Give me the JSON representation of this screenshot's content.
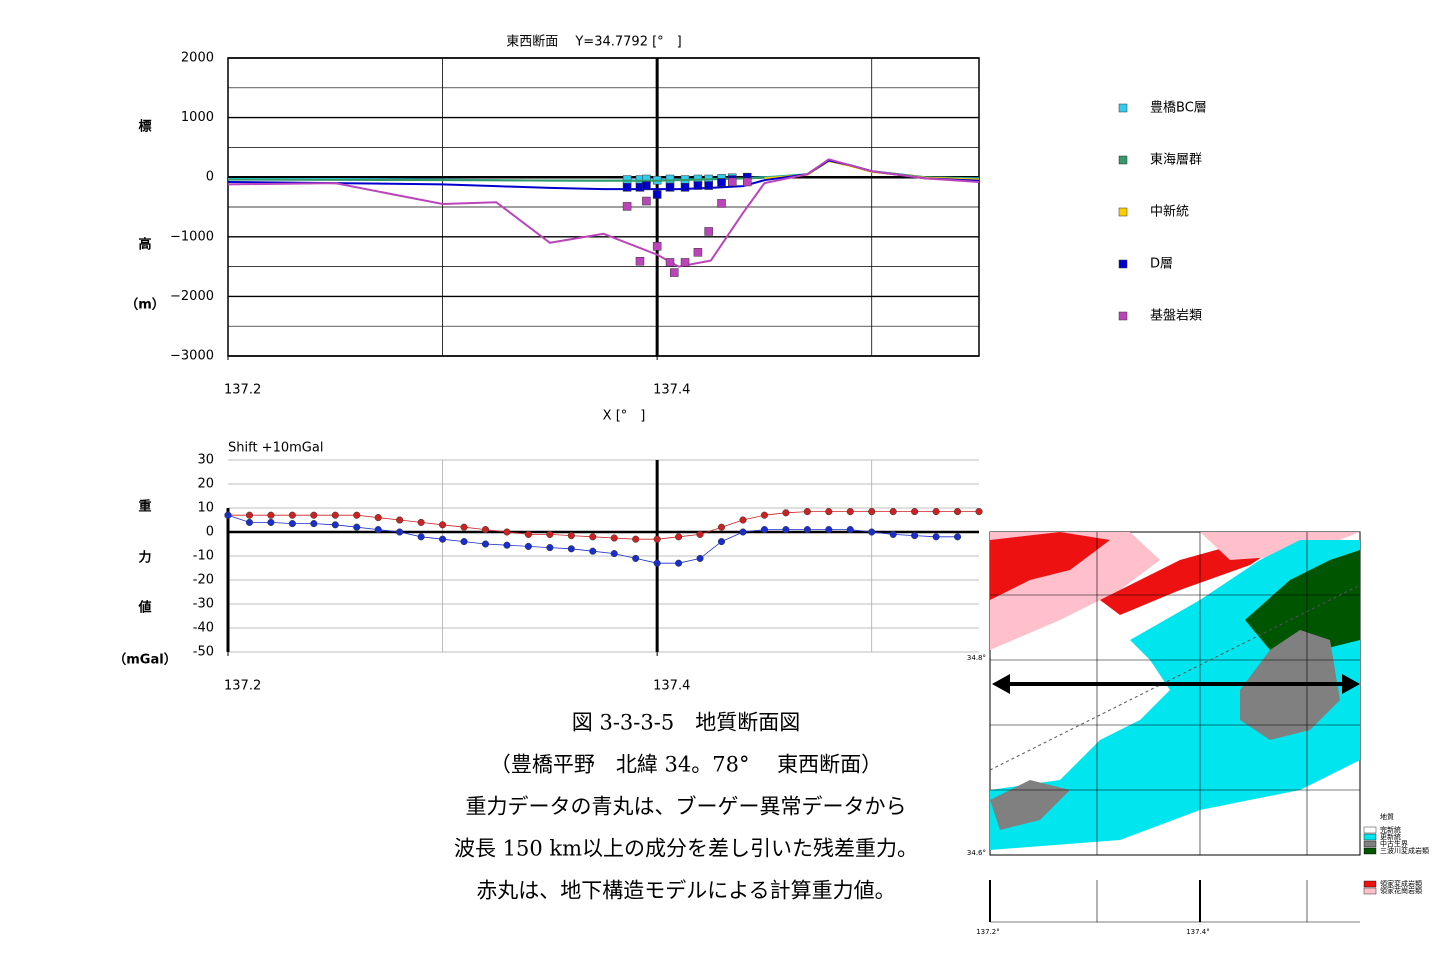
{
  "chart_data": [
    {
      "type": "line",
      "title": "東西断面　 Y=34.7792 [°　]",
      "xlabel": "X [°　]",
      "ylabel": [
        "標",
        "高",
        "（m）"
      ],
      "xlim": [
        137.2,
        137.55
      ],
      "xticks": [
        137.2,
        137.4
      ],
      "xgrid": [
        137.3,
        137.4,
        137.5
      ],
      "ylim": [
        -3000,
        2000
      ],
      "yticks": [
        2000,
        1000,
        0,
        {
          "value": -1000,
          "label": "−1000"
        },
        {
          "value": -2000,
          "label": "−2000"
        },
        {
          "value": -3000,
          "label": "−3000"
        }
      ],
      "ygrid_minor": [
        1500,
        500,
        -500,
        -1500,
        -2500
      ],
      "x_axis_at": 0,
      "y_axis_at": 137.4,
      "legend": "right",
      "series": [
        {
          "name": "豊橋BC層",
          "color": "#33ccee",
          "x": [
            137.2,
            137.25,
            137.3,
            137.325,
            137.35,
            137.375,
            137.4,
            137.41,
            137.425,
            137.44,
            137.45,
            137.47,
            137.48,
            137.49,
            137.5,
            137.525,
            137.55
          ],
          "values": [
            -30,
            -30,
            -40,
            -50,
            -60,
            -60,
            -50,
            -40,
            -30,
            -20,
            0,
            50,
            280,
            200,
            100,
            0,
            -20
          ],
          "marker_x": [
            137.386,
            137.392,
            137.395,
            137.4,
            137.406,
            137.413,
            137.419,
            137.424,
            137.43,
            137.435,
            137.442
          ],
          "marker_values": [
            -40,
            -40,
            -30,
            -50,
            -30,
            -40,
            -30,
            -30,
            -20,
            -10,
            0
          ]
        },
        {
          "name": "東海層群",
          "color": "#339966",
          "x": [
            137.2,
            137.3,
            137.4,
            137.45,
            137.47,
            137.48,
            137.49,
            137.5,
            137.525,
            137.55
          ],
          "values": [
            -40,
            -50,
            -60,
            -10,
            50,
            290,
            200,
            100,
            0,
            -30
          ]
        },
        {
          "name": "中新統",
          "color": "#ffcc00",
          "x": [
            137.45,
            137.47,
            137.48,
            137.49,
            137.5,
            137.525,
            137.55
          ],
          "values": [
            -20,
            40,
            270,
            190,
            90,
            -10,
            -40
          ]
        },
        {
          "name": "D層",
          "color": "#0000cc",
          "x": [
            137.2,
            137.25,
            137.3,
            137.325,
            137.35,
            137.375,
            137.4,
            137.41,
            137.425,
            137.44,
            137.45,
            137.47,
            137.48,
            137.49,
            137.5,
            137.525,
            137.55
          ],
          "values": [
            -80,
            -100,
            -120,
            -150,
            -180,
            -200,
            -200,
            -200,
            -180,
            -150,
            -50,
            50,
            280,
            200,
            100,
            -20,
            -60
          ],
          "marker_x": [
            137.386,
            137.392,
            137.395,
            137.4,
            137.406,
            137.413,
            137.419,
            137.424,
            137.43,
            137.435,
            137.442
          ],
          "marker_values": [
            -170,
            -170,
            -140,
            -290,
            -170,
            -170,
            -140,
            -140,
            -90,
            -40,
            0
          ]
        },
        {
          "name": "基盤岩類",
          "color": "#bb44bb",
          "x": [
            137.2,
            137.25,
            137.3,
            137.325,
            137.35,
            137.375,
            137.4,
            137.41,
            137.425,
            137.44,
            137.45,
            137.47,
            137.48,
            137.49,
            137.5,
            137.525,
            137.55
          ],
          "values": [
            -120,
            -100,
            -450,
            -420,
            -1100,
            -950,
            -1300,
            -1500,
            -1400,
            -600,
            -100,
            50,
            300,
            200,
            100,
            -20,
            -80
          ],
          "marker_x": [
            137.386,
            137.392,
            137.395,
            137.4,
            137.406,
            137.408,
            137.413,
            137.419,
            137.424,
            137.43,
            137.435,
            137.442
          ],
          "marker_values": [
            -490,
            -1410,
            -400,
            -1160,
            -1430,
            -1600,
            -1430,
            -1260,
            -910,
            -440,
            -80,
            -80
          ]
        }
      ]
    },
    {
      "type": "line",
      "annotation": "Shift +10mGal",
      "ylabel": [
        "重",
        "力",
        "値",
        "（mGal）"
      ],
      "xlim": [
        137.2,
        137.55
      ],
      "xticks": [
        137.2,
        137.4
      ],
      "xgrid": [
        137.3,
        137.4,
        137.5
      ],
      "ylim": [
        -50,
        30
      ],
      "yticks": [
        30,
        20,
        10,
        0,
        -10,
        -20,
        -30,
        -40,
        -50
      ],
      "x_axis_at": 0,
      "y_axis_at": 137.4,
      "x": [
        137.2,
        137.21,
        137.22,
        137.23,
        137.24,
        137.25,
        137.26,
        137.27,
        137.28,
        137.29,
        137.3,
        137.31,
        137.32,
        137.33,
        137.34,
        137.35,
        137.36,
        137.37,
        137.38,
        137.39,
        137.4,
        137.41,
        137.42,
        137.43,
        137.44,
        137.45,
        137.46,
        137.47,
        137.48,
        137.49,
        137.5,
        137.51,
        137.52,
        137.53,
        137.54,
        137.55
      ],
      "series": [
        {
          "color": "#cc2222",
          "values": [
            7,
            7,
            7,
            7,
            7,
            7,
            7,
            6,
            5,
            4,
            3,
            2,
            1,
            0,
            -1,
            -1,
            -1.5,
            -2,
            -2.5,
            -3,
            -3,
            -2,
            -1,
            2,
            5,
            7,
            8,
            8.5,
            8.5,
            8.5,
            8.5,
            8.5,
            8.5,
            8.5,
            8.5,
            8.5
          ]
        },
        {
          "color": "#1a2ecc",
          "values": [
            7,
            4,
            4,
            3.5,
            3.5,
            3,
            2,
            1,
            0,
            -2,
            -3,
            -4,
            -5,
            -5.5,
            -6,
            -6.5,
            -7,
            -8,
            -9,
            -11,
            -13,
            -13,
            -11,
            -4,
            0,
            1,
            1,
            1,
            1,
            1,
            0,
            -1,
            -1.5,
            -2,
            -2,
            null
          ]
        }
      ]
    }
  ],
  "caption": [
    "図 3-3-3-5　地質断面図",
    "（豊橋平野　北緯 34。78°　 東西断面）",
    "重力データの青丸は、ブーゲー異常データから",
    "波長 150 km以上の成分を差し引いた残差重力。",
    "赤丸は、地下構造モデルによる計算重力値。"
  ],
  "map": {
    "lat_labels": [
      "34.8°",
      "34.6°"
    ],
    "lon_labels": [
      "137.2°",
      "137.4°"
    ],
    "legend_title": "地質",
    "legend": [
      {
        "label": "完新統",
        "color": "#ffffff"
      },
      {
        "label": "更新統",
        "color": "#00e5ee"
      },
      {
        "label": "中古生界",
        "color": "#808080"
      },
      {
        "label": "三波川変成岩類",
        "color": "#005500"
      }
    ],
    "legend2": [
      {
        "label": "領家変成岩類",
        "color": "#ee1111"
      },
      {
        "label": "領家花崗岩類",
        "color": "#ffc0cb"
      }
    ]
  }
}
